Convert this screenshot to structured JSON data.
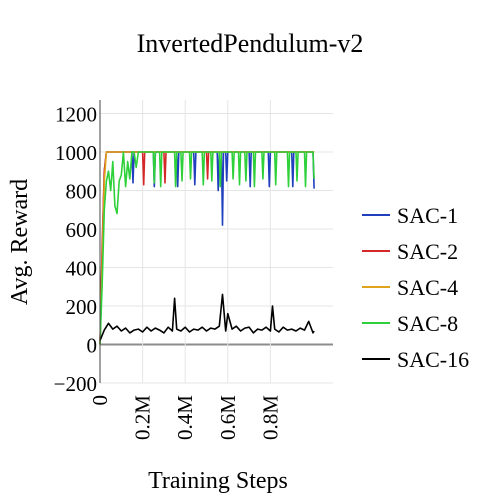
{
  "chart_data": {
    "type": "line",
    "title": "InvertedPendulum-v2",
    "xlabel": "Training Steps",
    "ylabel": "Avg. Reward",
    "xlim": [
      0,
      1000000
    ],
    "ylim": [
      -200,
      1270
    ],
    "x_ticks": [
      {
        "value": 0,
        "label": "0"
      },
      {
        "value": 200000,
        "label": "0.2M"
      },
      {
        "value": 400000,
        "label": "0.4M"
      },
      {
        "value": 600000,
        "label": "0.6M"
      },
      {
        "value": 800000,
        "label": "0.8M"
      }
    ],
    "y_ticks": [
      {
        "value": -200,
        "label": "−200"
      },
      {
        "value": 0,
        "label": "0"
      },
      {
        "value": 200,
        "label": "200"
      },
      {
        "value": 400,
        "label": "400"
      },
      {
        "value": 600,
        "label": "600"
      },
      {
        "value": 800,
        "label": "800"
      },
      {
        "value": 1000,
        "label": "1000"
      },
      {
        "value": 1200,
        "label": "1200"
      }
    ],
    "grid": true,
    "legend_position": "right",
    "series": [
      {
        "name": "SAC-1",
        "color": "#1f3fbf",
        "x": [
          0,
          10000,
          20000,
          30000,
          40000,
          150000,
          155000,
          160000,
          250000,
          255000,
          260000,
          360000,
          365000,
          370000,
          440000,
          445000,
          450000,
          550000,
          555000,
          560000,
          570000,
          575000,
          580000,
          590000,
          595000,
          600000,
          700000,
          705000,
          710000,
          790000,
          795000,
          800000,
          900000,
          905000,
          910000,
          1000000,
          1005000
        ],
        "y": [
          0,
          450,
          900,
          1000,
          1000,
          1000,
          840,
          1000,
          1000,
          820,
          1000,
          1000,
          820,
          1000,
          1000,
          830,
          1000,
          1000,
          800,
          1000,
          1000,
          620,
          1000,
          1000,
          850,
          1000,
          1000,
          820,
          1000,
          1000,
          820,
          1000,
          1000,
          820,
          1000,
          1000,
          810
        ]
      },
      {
        "name": "SAC-2",
        "color": "#d62728",
        "x": [
          0,
          10000,
          20000,
          30000,
          40000,
          200000,
          205000,
          210000,
          300000,
          305000,
          310000,
          500000,
          505000,
          510000,
          1005000
        ],
        "y": [
          0,
          500,
          900,
          1000,
          1000,
          1000,
          830,
          1000,
          1000,
          840,
          1000,
          1000,
          860,
          1000,
          1000
        ]
      },
      {
        "name": "SAC-4",
        "color": "#e0a41a",
        "x": [
          0,
          10000,
          20000,
          30000,
          40000,
          1005000
        ],
        "y": [
          0,
          400,
          850,
          1000,
          1000,
          1000
        ]
      },
      {
        "name": "SAC-8",
        "color": "#2fd13a",
        "x": [
          0,
          10000,
          20000,
          30000,
          40000,
          50000,
          60000,
          70000,
          80000,
          90000,
          100000,
          110000,
          120000,
          130000,
          140000,
          150000,
          160000,
          170000,
          180000,
          190000,
          200000,
          210000,
          250000,
          255000,
          260000,
          280000,
          285000,
          290000,
          350000,
          355000,
          360000,
          380000,
          385000,
          390000,
          420000,
          425000,
          430000,
          480000,
          485000,
          490000,
          520000,
          525000,
          530000,
          560000,
          565000,
          570000,
          620000,
          625000,
          630000,
          650000,
          655000,
          660000,
          680000,
          685000,
          690000,
          720000,
          725000,
          730000,
          760000,
          765000,
          770000,
          820000,
          825000,
          830000,
          880000,
          885000,
          890000,
          920000,
          925000,
          930000,
          960000,
          965000,
          970000,
          1000000,
          1005000
        ],
        "y": [
          0,
          300,
          700,
          850,
          900,
          800,
          950,
          720,
          680,
          850,
          880,
          1000,
          820,
          950,
          860,
          1000,
          1000,
          920,
          1000,
          1000,
          1000,
          1000,
          1000,
          840,
          1000,
          1000,
          820,
          1000,
          1000,
          820,
          1000,
          1000,
          850,
          1000,
          1000,
          860,
          1000,
          1000,
          830,
          1000,
          1000,
          850,
          1000,
          1000,
          820,
          1000,
          1000,
          860,
          1000,
          1000,
          830,
          1000,
          1000,
          850,
          1000,
          1000,
          820,
          1000,
          1000,
          860,
          1000,
          1000,
          830,
          1000,
          1000,
          820,
          1000,
          1000,
          850,
          1000,
          1000,
          820,
          1000,
          1000,
          860
        ]
      },
      {
        "name": "SAC-16",
        "color": "#000000",
        "x": [
          0,
          20000,
          40000,
          60000,
          80000,
          100000,
          120000,
          140000,
          160000,
          180000,
          200000,
          220000,
          240000,
          260000,
          280000,
          300000,
          320000,
          340000,
          350000,
          360000,
          380000,
          400000,
          420000,
          440000,
          460000,
          480000,
          500000,
          520000,
          540000,
          560000,
          575000,
          590000,
          600000,
          620000,
          640000,
          660000,
          680000,
          700000,
          720000,
          740000,
          760000,
          780000,
          800000,
          810000,
          820000,
          840000,
          860000,
          880000,
          900000,
          920000,
          940000,
          960000,
          980000,
          1000000,
          1005000
        ],
        "y": [
          20,
          75,
          110,
          80,
          95,
          70,
          85,
          60,
          75,
          80,
          65,
          90,
          70,
          85,
          75,
          60,
          90,
          70,
          240,
          80,
          70,
          90,
          65,
          80,
          75,
          90,
          70,
          85,
          80,
          95,
          260,
          70,
          160,
          80,
          95,
          70,
          85,
          90,
          60,
          80,
          75,
          90,
          70,
          200,
          80,
          65,
          90,
          75,
          80,
          70,
          85,
          75,
          120,
          60,
          70
        ]
      }
    ]
  }
}
